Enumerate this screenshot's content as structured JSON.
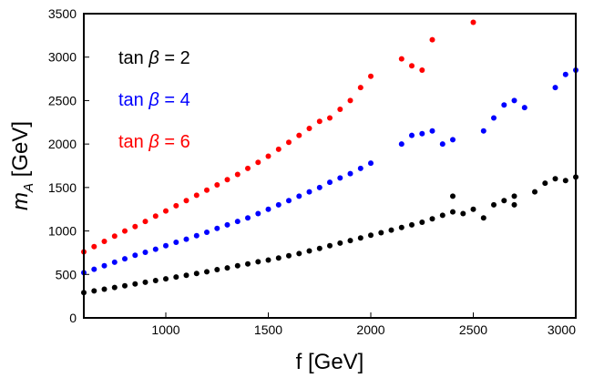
{
  "chart_data": {
    "type": "scatter",
    "xlabel": "f [GeV]",
    "ylabel_main": "m",
    "ylabel_sub": "A",
    "ylabel_unit": " [GeV]",
    "xlim": [
      600,
      3000
    ],
    "ylim": [
      0,
      3500
    ],
    "xticks": [
      1000,
      1500,
      2000,
      2500,
      3000
    ],
    "yticks": [
      0,
      500,
      1000,
      1500,
      2000,
      2500,
      3000,
      3500
    ],
    "grid": false,
    "legend_placement": "top-left",
    "series": [
      {
        "name": "tan β = 2",
        "label_prefix": "tan ",
        "label_symbol": "β",
        "label_suffix": " = 2",
        "color": "#000000",
        "points": [
          [
            600,
            290
          ],
          [
            650,
            310
          ],
          [
            700,
            330
          ],
          [
            750,
            350
          ],
          [
            800,
            370
          ],
          [
            850,
            390
          ],
          [
            900,
            410
          ],
          [
            950,
            430
          ],
          [
            1000,
            450
          ],
          [
            1050,
            470
          ],
          [
            1100,
            490
          ],
          [
            1150,
            510
          ],
          [
            1200,
            530
          ],
          [
            1250,
            555
          ],
          [
            1300,
            575
          ],
          [
            1350,
            600
          ],
          [
            1400,
            620
          ],
          [
            1450,
            645
          ],
          [
            1500,
            665
          ],
          [
            1550,
            690
          ],
          [
            1600,
            715
          ],
          [
            1650,
            740
          ],
          [
            1700,
            770
          ],
          [
            1750,
            800
          ],
          [
            1800,
            830
          ],
          [
            1850,
            860
          ],
          [
            1900,
            890
          ],
          [
            1950,
            920
          ],
          [
            2000,
            950
          ],
          [
            2050,
            980
          ],
          [
            2100,
            1010
          ],
          [
            2150,
            1040
          ],
          [
            2200,
            1070
          ],
          [
            2250,
            1100
          ],
          [
            2300,
            1140
          ],
          [
            2350,
            1180
          ],
          [
            2400,
            1220
          ],
          [
            2450,
            1200
          ],
          [
            2500,
            1250
          ],
          [
            2600,
            1300
          ],
          [
            2650,
            1350
          ],
          [
            2700,
            1400
          ],
          [
            2800,
            1450
          ],
          [
            2850,
            1550
          ],
          [
            2900,
            1600
          ],
          [
            2950,
            1580
          ],
          [
            3000,
            1620
          ],
          [
            2400,
            1400
          ],
          [
            2700,
            1300
          ],
          [
            2550,
            1150
          ]
        ]
      },
      {
        "name": "tan β = 4",
        "label_prefix": "tan ",
        "label_symbol": "β",
        "label_suffix": " = 4",
        "color": "#0000ff",
        "points": [
          [
            600,
            520
          ],
          [
            650,
            560
          ],
          [
            700,
            600
          ],
          [
            750,
            640
          ],
          [
            800,
            680
          ],
          [
            850,
            720
          ],
          [
            900,
            755
          ],
          [
            950,
            790
          ],
          [
            1000,
            830
          ],
          [
            1050,
            870
          ],
          [
            1100,
            905
          ],
          [
            1150,
            945
          ],
          [
            1200,
            985
          ],
          [
            1250,
            1030
          ],
          [
            1300,
            1070
          ],
          [
            1350,
            1110
          ],
          [
            1400,
            1150
          ],
          [
            1450,
            1200
          ],
          [
            1500,
            1250
          ],
          [
            1550,
            1300
          ],
          [
            1600,
            1350
          ],
          [
            1650,
            1400
          ],
          [
            1700,
            1450
          ],
          [
            1750,
            1500
          ],
          [
            1800,
            1560
          ],
          [
            1850,
            1610
          ],
          [
            1900,
            1660
          ],
          [
            1950,
            1720
          ],
          [
            2000,
            1780
          ],
          [
            2150,
            2000
          ],
          [
            2200,
            2100
          ],
          [
            2250,
            2120
          ],
          [
            2300,
            2150
          ],
          [
            2350,
            2000
          ],
          [
            2400,
            2050
          ],
          [
            2550,
            2150
          ],
          [
            2600,
            2300
          ],
          [
            2650,
            2450
          ],
          [
            2700,
            2500
          ],
          [
            2750,
            2420
          ],
          [
            2900,
            2650
          ],
          [
            2950,
            2800
          ],
          [
            3000,
            2850
          ]
        ]
      },
      {
        "name": "tan β = 6",
        "label_prefix": "tan ",
        "label_symbol": "β",
        "label_suffix": " = 6",
        "color": "#ff0000",
        "points": [
          [
            600,
            760
          ],
          [
            650,
            820
          ],
          [
            700,
            880
          ],
          [
            750,
            940
          ],
          [
            800,
            1000
          ],
          [
            850,
            1050
          ],
          [
            900,
            1110
          ],
          [
            950,
            1170
          ],
          [
            1000,
            1230
          ],
          [
            1050,
            1290
          ],
          [
            1100,
            1350
          ],
          [
            1150,
            1410
          ],
          [
            1200,
            1470
          ],
          [
            1250,
            1530
          ],
          [
            1300,
            1590
          ],
          [
            1350,
            1650
          ],
          [
            1400,
            1720
          ],
          [
            1450,
            1790
          ],
          [
            1500,
            1860
          ],
          [
            1550,
            1940
          ],
          [
            1600,
            2020
          ],
          [
            1650,
            2100
          ],
          [
            1700,
            2180
          ],
          [
            1750,
            2260
          ],
          [
            1800,
            2300
          ],
          [
            1850,
            2400
          ],
          [
            1900,
            2500
          ],
          [
            1950,
            2650
          ],
          [
            2000,
            2780
          ],
          [
            2150,
            2980
          ],
          [
            2200,
            2900
          ],
          [
            2250,
            2850
          ],
          [
            2300,
            3200
          ],
          [
            2500,
            3400
          ]
        ]
      }
    ]
  }
}
